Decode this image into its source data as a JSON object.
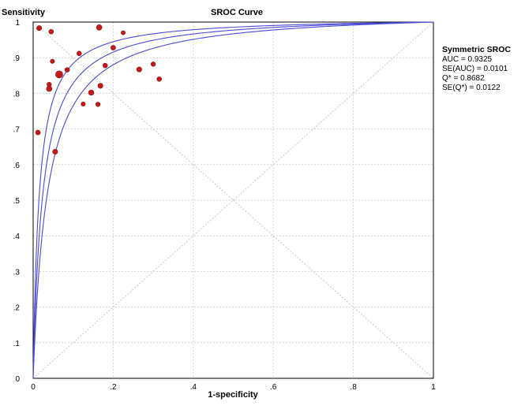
{
  "chart_data": {
    "type": "scatter",
    "title": "SROC Curve",
    "ylabel": "Sensitivity",
    "xlabel": "1-specificity",
    "xlim": [
      0,
      1
    ],
    "ylim": [
      0,
      1
    ],
    "grid": true,
    "x_ticks": [
      "0",
      ".2",
      ".4",
      ".6",
      ".8",
      "1"
    ],
    "x_tick_values": [
      0,
      0.2,
      0.4,
      0.6,
      0.8,
      1
    ],
    "y_ticks": [
      "0",
      ".1",
      ".2",
      ".3",
      ".4",
      ".5",
      ".6",
      ".7",
      ".8",
      ".9",
      "1"
    ],
    "y_tick_values": [
      0,
      0.1,
      0.2,
      0.3,
      0.4,
      0.5,
      0.6,
      0.7,
      0.8,
      0.9,
      1
    ],
    "curve_colors": "#4a48d6",
    "point_color": "#c41a1a",
    "sroc": {
      "Q": 0.8682,
      "Q_lower": 0.8442,
      "Q_upper": 0.8922
    },
    "studies": [
      {
        "x": 0.015,
        "y": 0.983,
        "weight": 1.0
      },
      {
        "x": 0.045,
        "y": 0.973,
        "weight": 0.85
      },
      {
        "x": 0.165,
        "y": 0.985,
        "weight": 1.2
      },
      {
        "x": 0.225,
        "y": 0.97,
        "weight": 0.7
      },
      {
        "x": 0.2,
        "y": 0.928,
        "weight": 0.9
      },
      {
        "x": 0.115,
        "y": 0.912,
        "weight": 0.85
      },
      {
        "x": 0.048,
        "y": 0.89,
        "weight": 0.7
      },
      {
        "x": 0.18,
        "y": 0.878,
        "weight": 0.85
      },
      {
        "x": 0.3,
        "y": 0.882,
        "weight": 0.8
      },
      {
        "x": 0.085,
        "y": 0.866,
        "weight": 0.85
      },
      {
        "x": 0.265,
        "y": 0.867,
        "weight": 1.0
      },
      {
        "x": 0.065,
        "y": 0.853,
        "weight": 2.0
      },
      {
        "x": 0.315,
        "y": 0.84,
        "weight": 0.85
      },
      {
        "x": 0.04,
        "y": 0.825,
        "weight": 0.8
      },
      {
        "x": 0.04,
        "y": 0.813,
        "weight": 1.2
      },
      {
        "x": 0.168,
        "y": 0.821,
        "weight": 1.0
      },
      {
        "x": 0.145,
        "y": 0.802,
        "weight": 1.1
      },
      {
        "x": 0.125,
        "y": 0.77,
        "weight": 0.7
      },
      {
        "x": 0.162,
        "y": 0.769,
        "weight": 0.8
      },
      {
        "x": 0.012,
        "y": 0.69,
        "weight": 0.9
      },
      {
        "x": 0.055,
        "y": 0.636,
        "weight": 1.0
      }
    ]
  },
  "stats": {
    "heading": "Symmetric SROC",
    "auc": "AUC = 0.9325",
    "se_auc": "SE(AUC) = 0.0101",
    "q_star": "Q* = 0.8682",
    "se_q_star": "SE(Q*) = 0.0122"
  }
}
